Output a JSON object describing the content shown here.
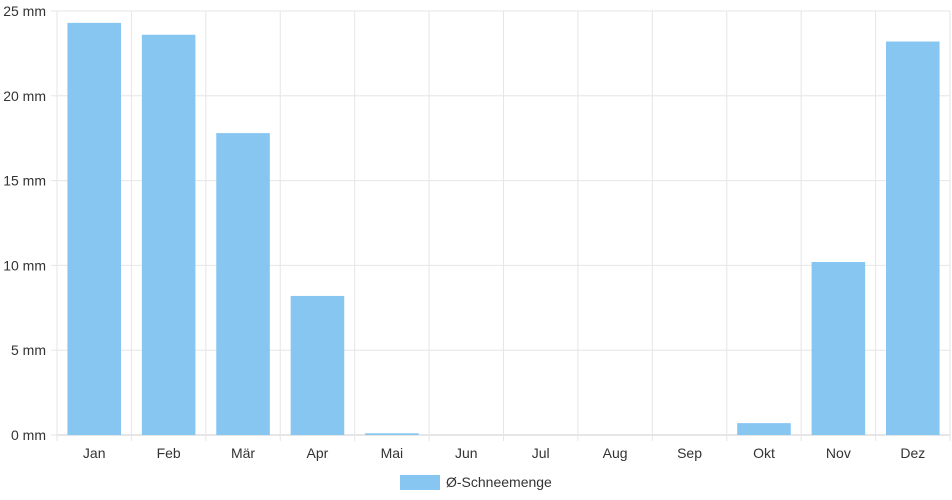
{
  "chart_data": {
    "type": "bar",
    "categories": [
      "Jan",
      "Feb",
      "Mär",
      "Apr",
      "Mai",
      "Jun",
      "Jul",
      "Aug",
      "Sep",
      "Okt",
      "Nov",
      "Dez"
    ],
    "series": [
      {
        "name": "Ø-Schneemenge",
        "values": [
          24.3,
          23.6,
          17.8,
          8.2,
          0.1,
          0,
          0,
          0,
          0,
          0.7,
          10.2,
          23.2
        ]
      }
    ],
    "unit": "mm",
    "y_ticks": [
      "0 mm",
      "5 mm",
      "10 mm",
      "15 mm",
      "20 mm",
      "25 mm"
    ],
    "ylim": [
      0,
      25
    ],
    "grid": true,
    "legend_position": "bottom",
    "colors": {
      "bar": "#88c6f2",
      "grid": "#e6e6e6",
      "axis": "#cccccc"
    }
  }
}
